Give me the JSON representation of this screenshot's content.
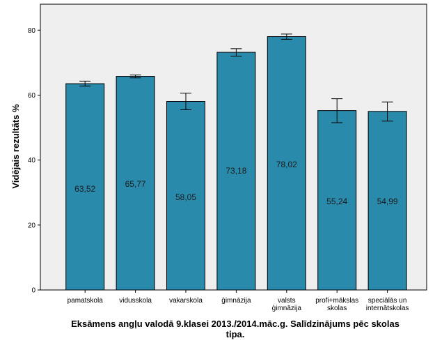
{
  "chart_data": {
    "type": "bar",
    "title": "",
    "xlabel": "Eksāmens angļu valodā 9.klasei 2013./2014.māc.g. Salīdzinājums pēc skolas tipa.",
    "ylabel": "Vidējais rezultāts %",
    "categories": [
      [
        "pamatskola"
      ],
      [
        "vidusskola"
      ],
      [
        "vakarskola"
      ],
      [
        "ģimnāzija"
      ],
      [
        "valsts",
        "ģimnāzija"
      ],
      [
        "profi+mākslas",
        "skolas"
      ],
      [
        "speciālās un",
        "internātskolas"
      ]
    ],
    "values": [
      63.52,
      65.77,
      58.05,
      73.18,
      78.02,
      55.24,
      54.99
    ],
    "data_labels": [
      "63,52",
      "65,77",
      "58,05",
      "73,18",
      "78,02",
      "55,24",
      "54,99"
    ],
    "error_bars": [
      {
        "low": 62.8,
        "high": 64.3
      },
      {
        "low": 65.3,
        "high": 66.2
      },
      {
        "low": 55.5,
        "high": 60.6
      },
      {
        "low": 72.0,
        "high": 74.3
      },
      {
        "low": 77.2,
        "high": 78.8
      },
      {
        "low": 51.5,
        "high": 58.9
      },
      {
        "low": 52.0,
        "high": 57.9
      }
    ],
    "ylim": [
      0,
      88
    ],
    "yticks": [
      0,
      20,
      40,
      60,
      80
    ],
    "grid": false,
    "colors": {
      "bar_fill": "#2a8aab",
      "bar_stroke": "#000000",
      "plot_background": "#efefef",
      "error_bar": "#000000"
    }
  }
}
